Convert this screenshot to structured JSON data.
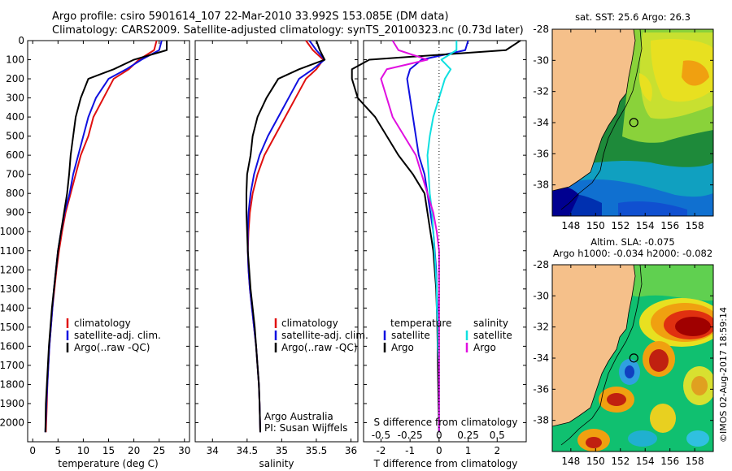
{
  "header": {
    "line1": "Argo profile: csiro 5901614_107 22-Mar-2010 33.992S 153.085E (DM data)",
    "line2": "Climatology: CARS2009. Satellite-adjusted climatology: synTS_20100323.nc (0.73d later)"
  },
  "colors": {
    "climatology": "#e01010",
    "satellite": "#1010e0",
    "argo": "#000000",
    "sal_satellite": "#10e0e0",
    "sal_argo": "#e010e0",
    "land": "#f5c08a"
  },
  "depth_ticks": [
    "0",
    "100",
    "200",
    "300",
    "400",
    "500",
    "600",
    "700",
    "800",
    "900",
    "1000",
    "1100",
    "1200",
    "1300",
    "1400",
    "1500",
    "1600",
    "1700",
    "1800",
    "1900",
    "2000"
  ],
  "legends": {
    "temp": [
      "climatology",
      "satellite-adj. clim.",
      "Argo(..raw -QC)"
    ],
    "sal": [
      "climatology",
      "satellite-adj. clim.",
      "Argo(..raw -QC)"
    ],
    "diff_temp_header": "temperature",
    "diff_sal_header": "salinity",
    "diff_temp": [
      "satellite",
      "Argo"
    ],
    "diff_sal": [
      "satellite",
      "Argo"
    ]
  },
  "credit": {
    "line1": "Argo Australia",
    "line2": "PI: Susan Wijffels"
  },
  "maps": {
    "sst_title": "sat. SST: 25.6  Argo: 26.3",
    "sla_title1": "Altim. SLA: -0.075",
    "sla_title2": "Argo h1000: -0.034  h2000: -0.082",
    "lat_ticks": [
      "-28",
      "-30",
      "-32",
      "-34",
      "-36",
      "-38"
    ],
    "lon_ticks": [
      "148",
      "150",
      "152",
      "154",
      "156",
      "158"
    ],
    "lat_range": [
      -40,
      -28
    ],
    "lon_range": [
      146.5,
      159.5
    ],
    "float_position": {
      "lat": -33.992,
      "lon": 153.085
    },
    "watermark": "©IMOS 02-Aug-2017 18:59:14"
  },
  "chart_data": [
    {
      "type": "line",
      "name": "temperature",
      "xlabel": "temperature (deg C)",
      "ylabel": "",
      "xlim": [
        -1,
        31
      ],
      "ylim": [
        2100,
        0
      ],
      "xticks": [
        "0",
        "5",
        "10",
        "15",
        "20",
        "25",
        "30"
      ],
      "series": [
        {
          "name": "climatology",
          "x": [
            24.5,
            24,
            21,
            19,
            16,
            14,
            12,
            11,
            9.5,
            8.5,
            7.5,
            6.5,
            5.8,
            5.2,
            4.7,
            4.3,
            3.9,
            3.6,
            3.3,
            3.1,
            2.9,
            2.8,
            2.6
          ],
          "y": [
            0,
            50,
            100,
            150,
            200,
            300,
            400,
            500,
            600,
            700,
            800,
            900,
            1000,
            1100,
            1200,
            1300,
            1400,
            1500,
            1600,
            1700,
            1800,
            1900,
            2050
          ]
        },
        {
          "name": "satellite-adj. clim.",
          "x": [
            25.5,
            25,
            21.5,
            18.5,
            15,
            12.5,
            11,
            10,
            9,
            8,
            7.3,
            6.3,
            5.6,
            5,
            4.6,
            4.2,
            3.9,
            3.6,
            3.3,
            3.1,
            2.9,
            2.7,
            2.5
          ],
          "y": [
            0,
            50,
            100,
            150,
            200,
            300,
            400,
            500,
            600,
            700,
            800,
            900,
            1000,
            1100,
            1200,
            1300,
            1400,
            1500,
            1600,
            1700,
            1800,
            1900,
            2050
          ]
        },
        {
          "name": "Argo(..raw -QC)",
          "x": [
            26.5,
            26.5,
            20,
            16,
            11,
            9.5,
            8.5,
            8,
            7.5,
            7.2,
            6.8,
            6.2,
            5.6,
            5,
            4.6,
            4.2,
            3.8,
            3.5,
            3.2,
            3,
            2.8,
            2.6,
            2.5
          ],
          "y": [
            0,
            50,
            100,
            150,
            200,
            300,
            400,
            500,
            600,
            700,
            800,
            900,
            1000,
            1100,
            1200,
            1300,
            1400,
            1500,
            1600,
            1700,
            1800,
            1900,
            2050
          ]
        }
      ]
    },
    {
      "type": "line",
      "name": "salinity",
      "xlabel": "salinity",
      "ylabel": "",
      "xlim": [
        33.75,
        36.1
      ],
      "ylim": [
        2100,
        0
      ],
      "xticks": [
        "34",
        "34.5",
        "35",
        "35.5",
        "36"
      ],
      "series": [
        {
          "name": "climatology",
          "x": [
            35.35,
            35.45,
            35.6,
            35.5,
            35.35,
            35.2,
            35.05,
            34.9,
            34.75,
            34.65,
            34.58,
            34.54,
            34.52,
            34.51,
            34.52,
            34.54,
            34.57,
            34.6,
            34.63,
            34.65,
            34.67,
            34.68,
            34.69
          ],
          "y": [
            0,
            50,
            100,
            150,
            200,
            300,
            400,
            500,
            600,
            700,
            800,
            900,
            1000,
            1100,
            1200,
            1300,
            1400,
            1500,
            1600,
            1700,
            1800,
            1900,
            2050
          ]
        },
        {
          "name": "satellite-adj. clim.",
          "x": [
            35.4,
            35.5,
            35.62,
            35.45,
            35.25,
            35.1,
            34.95,
            34.8,
            34.68,
            34.6,
            34.55,
            34.52,
            34.51,
            34.51,
            34.52,
            34.54,
            34.57,
            34.6,
            34.63,
            34.65,
            34.67,
            34.68,
            34.69
          ],
          "y": [
            0,
            50,
            100,
            150,
            200,
            300,
            400,
            500,
            600,
            700,
            800,
            900,
            1000,
            1100,
            1200,
            1300,
            1400,
            1500,
            1600,
            1700,
            1800,
            1900,
            2050
          ]
        },
        {
          "name": "Argo(..raw -QC)",
          "x": [
            35.5,
            35.55,
            35.62,
            35.25,
            34.95,
            34.78,
            34.65,
            34.58,
            34.55,
            34.5,
            34.49,
            34.49,
            34.5,
            34.51,
            34.53,
            34.55,
            34.58,
            34.61,
            34.63,
            34.65,
            34.67,
            34.68,
            34.69
          ],
          "y": [
            0,
            50,
            100,
            150,
            200,
            300,
            400,
            500,
            600,
            700,
            800,
            900,
            1000,
            1100,
            1200,
            1300,
            1400,
            1500,
            1600,
            1700,
            1800,
            1900,
            2050
          ]
        }
      ]
    },
    {
      "type": "line",
      "name": "difference from climatology",
      "xlabel": "T difference from climatology",
      "x2label": "S difference from climatology",
      "xlim": [
        -2.6,
        3
      ],
      "ylim": [
        2100,
        0
      ],
      "xticks": [
        "-2",
        "-1",
        "0",
        "1",
        "2"
      ],
      "x2ticks": [
        "-0.5",
        "-0.25",
        "0",
        "0.25",
        "0.5"
      ],
      "series": [
        {
          "name": "temperature satellite",
          "x": [
            1,
            0.9,
            -0.6,
            -1,
            -1.1,
            -1,
            -0.9,
            -0.8,
            -0.7,
            -0.5,
            -0.4,
            -0.3,
            -0.2,
            -0.15,
            -0.1,
            -0.08,
            -0.06,
            -0.05,
            -0.04,
            -0.03,
            -0.02,
            -0.01,
            0
          ],
          "y": [
            0,
            50,
            100,
            150,
            200,
            300,
            400,
            500,
            600,
            700,
            800,
            900,
            1000,
            1100,
            1200,
            1300,
            1400,
            1500,
            1600,
            1700,
            1800,
            1900,
            2050
          ]
        },
        {
          "name": "temperature Argo",
          "x": [
            2.8,
            2.3,
            -2.4,
            -3,
            -3,
            -2.8,
            -2.2,
            -1.8,
            -1.4,
            -0.9,
            -0.5,
            -0.4,
            -0.3,
            -0.2,
            -0.15,
            -0.1,
            -0.08,
            -0.06,
            -0.05,
            -0.04,
            -0.03,
            -0.02,
            0
          ],
          "y": [
            0,
            50,
            100,
            150,
            200,
            300,
            400,
            500,
            600,
            700,
            800,
            900,
            1000,
            1100,
            1200,
            1300,
            1400,
            1500,
            1600,
            1700,
            1800,
            1900,
            2050
          ]
        },
        {
          "name": "salinity satellite",
          "x": [
            0.15,
            0.15,
            0.02,
            0.1,
            0.05,
            0,
            -0.05,
            -0.08,
            -0.1,
            -0.09,
            -0.08,
            -0.06,
            -0.05,
            -0.04,
            -0.03,
            -0.02,
            -0.02,
            -0.01,
            -0.01,
            0,
            0,
            0,
            0
          ],
          "y": [
            0,
            50,
            100,
            150,
            200,
            300,
            400,
            500,
            600,
            700,
            800,
            900,
            1000,
            1100,
            1200,
            1300,
            1400,
            1500,
            1600,
            1700,
            1800,
            1900,
            2050
          ]
        },
        {
          "name": "salinity Argo",
          "x": [
            -0.4,
            -0.35,
            -0.1,
            -0.45,
            -0.5,
            -0.45,
            -0.4,
            -0.3,
            -0.2,
            -0.15,
            -0.1,
            -0.05,
            -0.02,
            0,
            0,
            0,
            0,
            0,
            0,
            0,
            0,
            0,
            0
          ],
          "y": [
            0,
            50,
            100,
            150,
            200,
            300,
            400,
            500,
            600,
            700,
            800,
            900,
            1000,
            1100,
            1200,
            1300,
            1400,
            1500,
            1600,
            1700,
            1800,
            1900,
            2050
          ]
        }
      ]
    }
  ]
}
